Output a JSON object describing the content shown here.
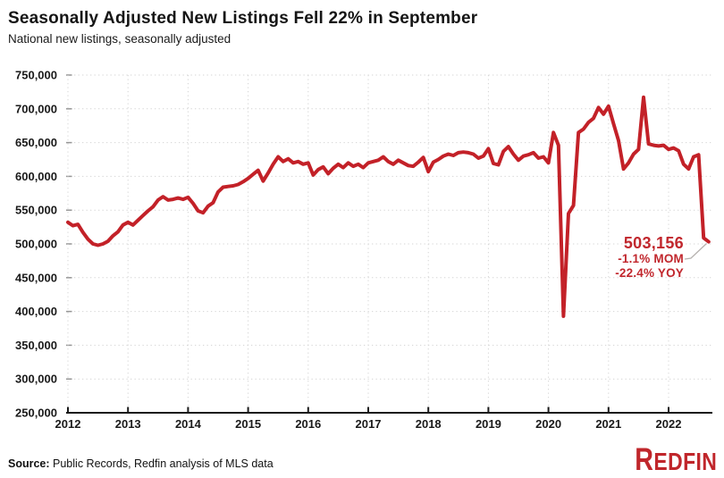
{
  "header": {
    "title": "Seasonally Adjusted New Listings Fell 22% in September",
    "subtitle": "National new listings, seasonally adjusted"
  },
  "annotation": {
    "value": "503,156",
    "mom": "-1.1% MOM",
    "yoy": "-22.4% YOY"
  },
  "footer": {
    "source_label": "Source:",
    "source_text": " Public Records, Redfin analysis of MLS data",
    "logo_first": "R",
    "logo_rest": "EDFIN"
  },
  "colors": {
    "line": "#c32128",
    "annotation": "#c1272d",
    "logo": "#c0262b",
    "grid": "#d4d4d4",
    "axis": "#1a1a1a",
    "ytick": "#969696",
    "leader": "#b6b2af"
  },
  "chart_data": {
    "type": "line",
    "title": "Seasonally Adjusted New Listings Fell 22% in September",
    "series_name": "National new listings, seasonally adjusted",
    "start_month": "2012-01",
    "end_month": "2022-09",
    "frequency": "monthly",
    "ylim": [
      250000,
      750000
    ],
    "y_tick_step": 50000,
    "grid": "dotted",
    "legend": "none",
    "y_tick_labels": [
      "250,000",
      "300,000",
      "350,000",
      "400,000",
      "450,000",
      "500,000",
      "550,000",
      "600,000",
      "650,000",
      "700,000",
      "750,000"
    ],
    "x_tick_years": [
      "2012",
      "2013",
      "2014",
      "2015",
      "2016",
      "2017",
      "2018",
      "2019",
      "2020",
      "2021",
      "2022"
    ],
    "last_point_value": 503156,
    "values": [
      532000,
      527000,
      529000,
      517000,
      507000,
      500000,
      498000,
      500000,
      504000,
      512000,
      518000,
      528000,
      532000,
      528000,
      535000,
      542000,
      549000,
      555000,
      565000,
      570000,
      565000,
      566000,
      568000,
      566000,
      569000,
      560000,
      549000,
      546000,
      556000,
      561000,
      577000,
      584000,
      585000,
      586000,
      588000,
      592000,
      597000,
      603000,
      609000,
      593000,
      605000,
      618000,
      629000,
      622000,
      626000,
      620000,
      622000,
      618000,
      620000,
      602000,
      610000,
      614000,
      604000,
      612000,
      618000,
      613000,
      620000,
      615000,
      618000,
      613000,
      620000,
      622000,
      624000,
      629000,
      622000,
      618000,
      624000,
      620000,
      616000,
      615000,
      621000,
      628000,
      607000,
      621000,
      625000,
      630000,
      633000,
      631000,
      635000,
      636000,
      635000,
      633000,
      627000,
      630000,
      641000,
      619000,
      617000,
      637000,
      644000,
      633000,
      624000,
      630000,
      632000,
      635000,
      627000,
      629000,
      620000,
      665000,
      646000,
      393000,
      545000,
      557000,
      665000,
      670000,
      680000,
      686000,
      702000,
      692000,
      704000,
      678000,
      653000,
      611000,
      620000,
      633000,
      640000,
      717000,
      648000,
      646000,
      645000,
      646000,
      640000,
      642000,
      638000,
      618000,
      611000,
      629000,
      632000,
      508800,
      503156
    ]
  }
}
